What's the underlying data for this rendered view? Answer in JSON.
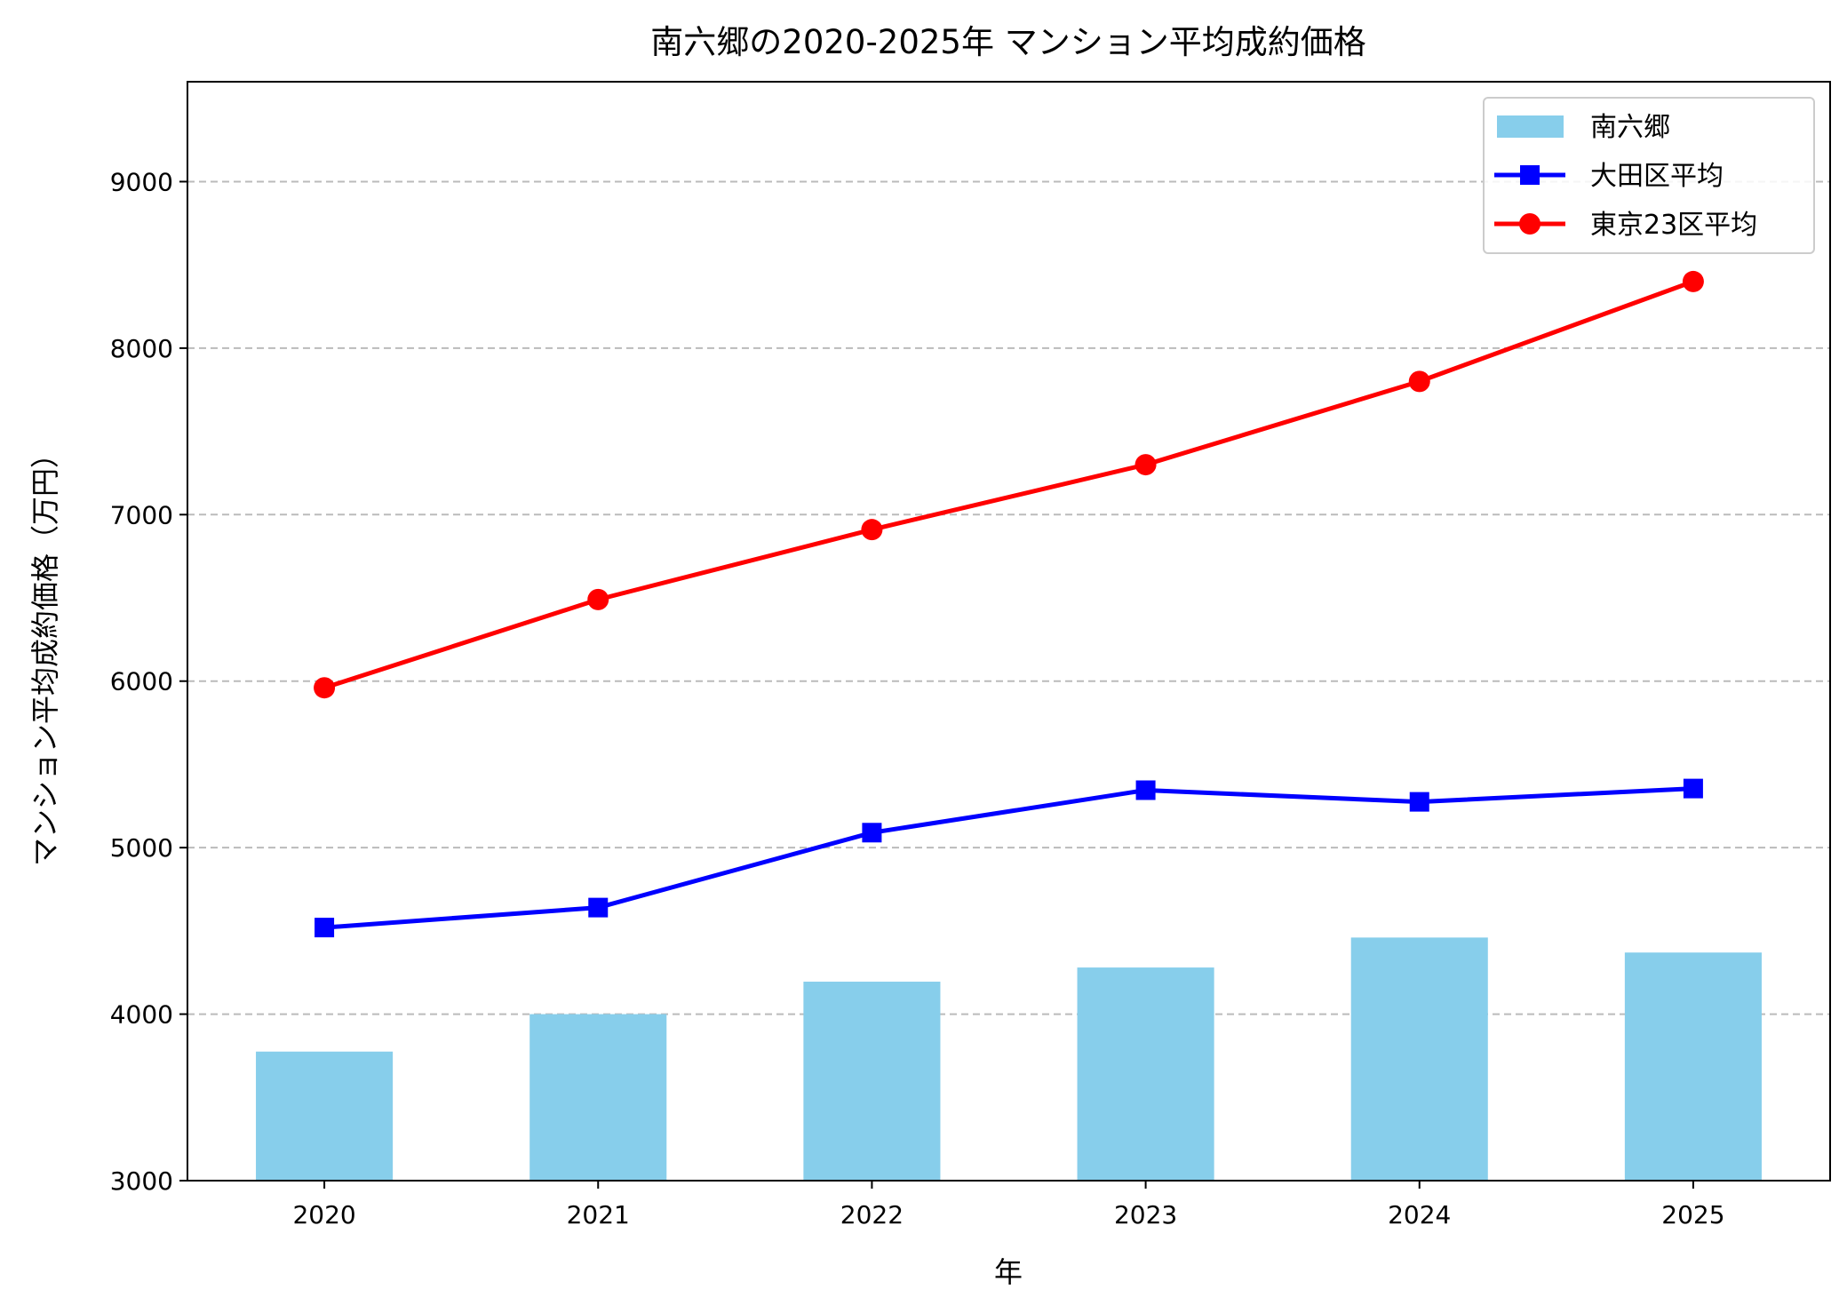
{
  "chart_data": {
    "type": "bar+line",
    "title": "南六郷の2020-2025年 マンション平均成約価格",
    "xlabel": "年",
    "ylabel": "マンション平均成約価格（万円）",
    "categories": [
      "2020",
      "2021",
      "2022",
      "2023",
      "2024",
      "2025"
    ],
    "ylim": [
      3000,
      9600
    ],
    "yticks": [
      "3000",
      "4000",
      "5000",
      "6000",
      "7000",
      "8000",
      "9000"
    ],
    "grid": "y-dashed",
    "legend_position": "top-right",
    "series": [
      {
        "name": "南六郷",
        "type": "bar",
        "color": "#87CEEB",
        "values": [
          3775,
          4000,
          4195,
          4280,
          4460,
          4370
        ]
      },
      {
        "name": "大田区平均",
        "type": "line",
        "marker": "square",
        "color": "#0000FF",
        "values": [
          4520,
          4640,
          5090,
          5345,
          5275,
          5355
        ]
      },
      {
        "name": "東京23区平均",
        "type": "line",
        "marker": "circle",
        "color": "#FF0000",
        "values": [
          5960,
          6490,
          6910,
          7300,
          7800,
          8400
        ]
      }
    ]
  }
}
